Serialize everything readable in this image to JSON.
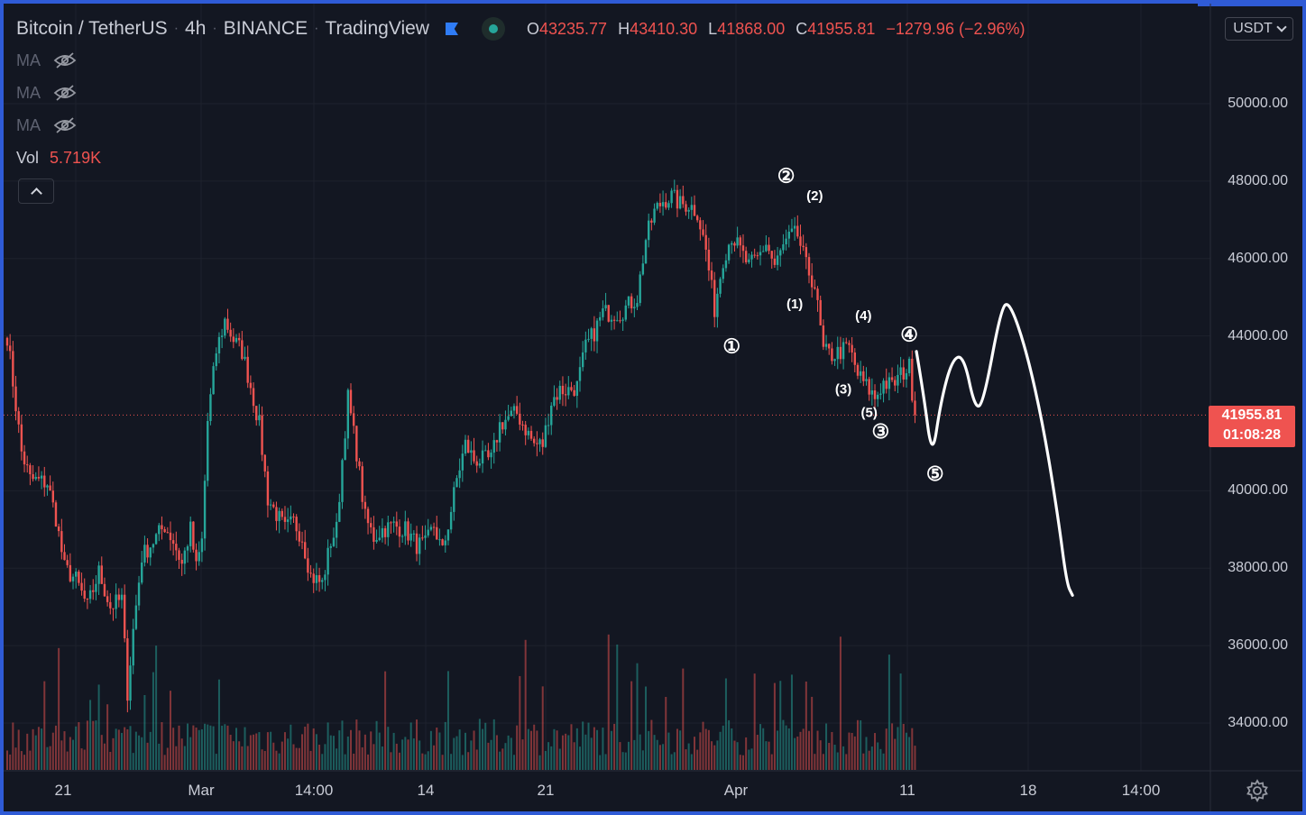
{
  "header": {
    "symbol": "Bitcoin / TetherUS",
    "interval": "4h",
    "exchange": "BINANCE",
    "provider": "TradingView",
    "ohlc": {
      "o_key": "O",
      "o": "43235.77",
      "h_key": "H",
      "h": "43410.30",
      "l_key": "L",
      "l": "41868.00",
      "c_key": "C",
      "c": "41955.81",
      "change": "−1279.96 (−2.96%)"
    }
  },
  "indicators": {
    "ma_labels": [
      "MA",
      "MA",
      "MA"
    ],
    "vol_label": "Vol",
    "vol_value": "5.719K"
  },
  "currency": "USDT",
  "last_price": {
    "price": "41955.81",
    "countdown": "01:08:28"
  },
  "colors": {
    "background": "#131722",
    "up": "#26a69a",
    "down": "#ef5350",
    "text": "#c9ccd6"
  },
  "chart_data": {
    "type": "candlestick",
    "y_ticks": [
      "50000.00",
      "48000.00",
      "46000.00",
      "44000.00",
      "40000.00",
      "38000.00",
      "36000.00",
      "34000.00"
    ],
    "x_ticks": [
      "21",
      "Mar",
      "14:00",
      "14",
      "21",
      "Apr",
      "11",
      "18",
      "14:00"
    ],
    "ylim": [
      32800,
      51800
    ],
    "price_path": [
      {
        "i": 0,
        "p": 44000
      },
      {
        "i": 3,
        "p": 42200
      },
      {
        "i": 5,
        "p": 41000
      },
      {
        "i": 8,
        "p": 40300
      },
      {
        "i": 14,
        "p": 40200
      },
      {
        "i": 17,
        "p": 39300
      },
      {
        "i": 20,
        "p": 38000
      },
      {
        "i": 24,
        "p": 37700
      },
      {
        "i": 28,
        "p": 37000
      },
      {
        "i": 32,
        "p": 37900
      },
      {
        "i": 36,
        "p": 37000
      },
      {
        "i": 40,
        "p": 37200
      },
      {
        "i": 42,
        "p": 34800
      },
      {
        "i": 44,
        "p": 36400
      },
      {
        "i": 47,
        "p": 38300
      },
      {
        "i": 51,
        "p": 38700
      },
      {
        "i": 55,
        "p": 39100
      },
      {
        "i": 58,
        "p": 38700
      },
      {
        "i": 61,
        "p": 38100
      },
      {
        "i": 64,
        "p": 39000
      },
      {
        "i": 66,
        "p": 38000
      },
      {
        "i": 68,
        "p": 38700
      },
      {
        "i": 70,
        "p": 41800
      },
      {
        "i": 73,
        "p": 43600
      },
      {
        "i": 76,
        "p": 44400
      },
      {
        "i": 79,
        "p": 43900
      },
      {
        "i": 82,
        "p": 43600
      },
      {
        "i": 85,
        "p": 42700
      },
      {
        "i": 88,
        "p": 41700
      },
      {
        "i": 91,
        "p": 39800
      },
      {
        "i": 94,
        "p": 39400
      },
      {
        "i": 97,
        "p": 39000
      },
      {
        "i": 100,
        "p": 39200
      },
      {
        "i": 103,
        "p": 38800
      },
      {
        "i": 106,
        "p": 37800
      },
      {
        "i": 110,
        "p": 37600
      },
      {
        "i": 113,
        "p": 38700
      },
      {
        "i": 115,
        "p": 39000
      },
      {
        "i": 117,
        "p": 40800
      },
      {
        "i": 119,
        "p": 42400
      },
      {
        "i": 122,
        "p": 41000
      },
      {
        "i": 125,
        "p": 39300
      },
      {
        "i": 128,
        "p": 38800
      },
      {
        "i": 131,
        "p": 39000
      },
      {
        "i": 135,
        "p": 39100
      },
      {
        "i": 139,
        "p": 39000
      },
      {
        "i": 143,
        "p": 38600
      },
      {
        "i": 146,
        "p": 38600
      },
      {
        "i": 149,
        "p": 39100
      },
      {
        "i": 152,
        "p": 38400
      },
      {
        "i": 155,
        "p": 39500
      },
      {
        "i": 157,
        "p": 40300
      },
      {
        "i": 160,
        "p": 41200
      },
      {
        "i": 163,
        "p": 40800
      },
      {
        "i": 166,
        "p": 40800
      },
      {
        "i": 169,
        "p": 40800
      },
      {
        "i": 172,
        "p": 41700
      },
      {
        "i": 175,
        "p": 41900
      },
      {
        "i": 178,
        "p": 42000
      },
      {
        "i": 181,
        "p": 41600
      },
      {
        "i": 184,
        "p": 41200
      },
      {
        "i": 187,
        "p": 41200
      },
      {
        "i": 190,
        "p": 42300
      },
      {
        "i": 193,
        "p": 42600
      },
      {
        "i": 196,
        "p": 42600
      },
      {
        "i": 199,
        "p": 42700
      },
      {
        "i": 202,
        "p": 43700
      },
      {
        "i": 205,
        "p": 44100
      },
      {
        "i": 208,
        "p": 44600
      },
      {
        "i": 211,
        "p": 44600
      },
      {
        "i": 214,
        "p": 44600
      },
      {
        "i": 217,
        "p": 44800
      },
      {
        "i": 220,
        "p": 45000
      },
      {
        "i": 223,
        "p": 46500
      },
      {
        "i": 226,
        "p": 47200
      },
      {
        "i": 229,
        "p": 47500
      },
      {
        "i": 232,
        "p": 47600
      },
      {
        "i": 235,
        "p": 47400
      },
      {
        "i": 238,
        "p": 47400
      },
      {
        "i": 241,
        "p": 47200
      },
      {
        "i": 244,
        "p": 46200
      },
      {
        "i": 247,
        "p": 44700
      },
      {
        "i": 250,
        "p": 46000
      },
      {
        "i": 253,
        "p": 46600
      },
      {
        "i": 256,
        "p": 46200
      },
      {
        "i": 259,
        "p": 45800
      },
      {
        "i": 262,
        "p": 46000
      },
      {
        "i": 265,
        "p": 46400
      },
      {
        "i": 268,
        "p": 45800
      },
      {
        "i": 271,
        "p": 46300
      },
      {
        "i": 274,
        "p": 46600
      },
      {
        "i": 276,
        "p": 46600
      },
      {
        "i": 279,
        "p": 45800
      },
      {
        "i": 282,
        "p": 45300
      },
      {
        "i": 285,
        "p": 43600
      },
      {
        "i": 288,
        "p": 43500
      },
      {
        "i": 291,
        "p": 43600
      },
      {
        "i": 294,
        "p": 43700
      },
      {
        "i": 297,
        "p": 43000
      },
      {
        "i": 300,
        "p": 42700
      },
      {
        "i": 303,
        "p": 42400
      },
      {
        "i": 306,
        "p": 42800
      },
      {
        "i": 309,
        "p": 42700
      },
      {
        "i": 312,
        "p": 43000
      },
      {
        "i": 315,
        "p": 43200
      },
      {
        "i": 317,
        "p": 41955
      }
    ],
    "drawing_path": [
      {
        "i": 317.5,
        "p": 43600
      },
      {
        "i": 320,
        "p": 42500
      },
      {
        "i": 323,
        "p": 40800
      },
      {
        "i": 326,
        "p": 42300
      },
      {
        "i": 330,
        "p": 43400
      },
      {
        "i": 334,
        "p": 43500
      },
      {
        "i": 338,
        "p": 42100
      },
      {
        "i": 341,
        "p": 42300
      },
      {
        "i": 347,
        "p": 44700
      },
      {
        "i": 350,
        "p": 44900
      },
      {
        "i": 356,
        "p": 43600
      },
      {
        "i": 362,
        "p": 41600
      },
      {
        "i": 367,
        "p": 39300
      },
      {
        "i": 370,
        "p": 37600
      },
      {
        "i": 372,
        "p": 37300
      }
    ],
    "wave_labels": [
      {
        "text": "①",
        "i": 253,
        "p": 43700,
        "style": "circled"
      },
      {
        "text": "②",
        "i": 272,
        "p": 48100,
        "style": "circled"
      },
      {
        "text": "③",
        "i": 305,
        "p": 41500,
        "style": "circled"
      },
      {
        "text": "④",
        "i": 315,
        "p": 44000,
        "style": "circled"
      },
      {
        "text": "⑤",
        "i": 324,
        "p": 40400,
        "style": "circled"
      },
      {
        "text": "(1)",
        "i": 275,
        "p": 44800,
        "style": "paren"
      },
      {
        "text": "(2)",
        "i": 282,
        "p": 47600,
        "style": "paren"
      },
      {
        "text": "(3)",
        "i": 292,
        "p": 42600,
        "style": "paren"
      },
      {
        "text": "(4)",
        "i": 299,
        "p": 44500,
        "style": "paren"
      },
      {
        "text": "(5)",
        "i": 301,
        "p": 42000,
        "style": "paren"
      }
    ]
  }
}
